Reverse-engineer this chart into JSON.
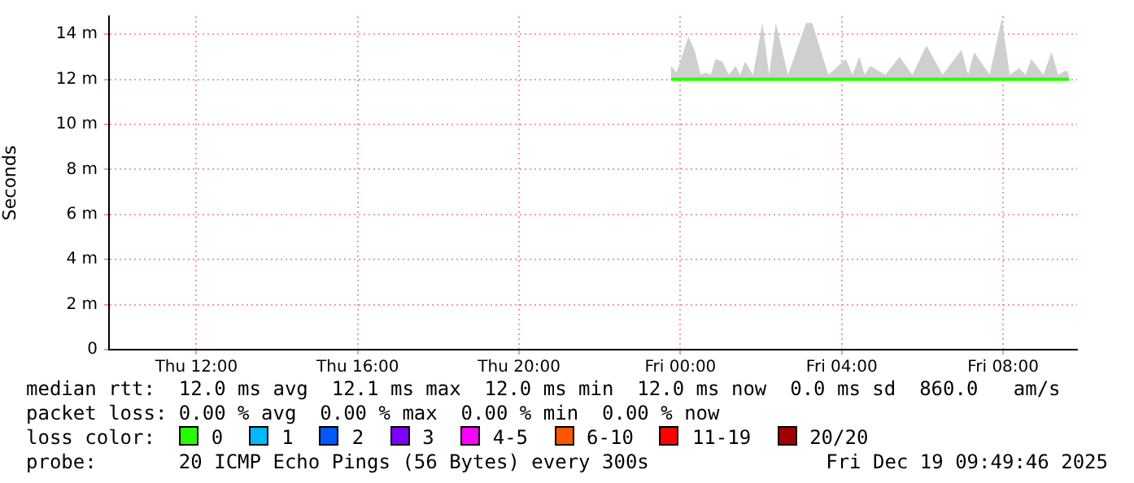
{
  "chart_data": {
    "type": "line",
    "ylabel": "Seconds",
    "legend_title": "loss color:",
    "legend": "bottom",
    "grid": true,
    "marker": "none",
    "line_style": "solid",
    "xlim": [
      "2025-12-18T09:50",
      "2025-12-19T09:50"
    ],
    "xticks": [
      {
        "value": "2025-12-18T12:00",
        "label": "Thu 12:00"
      },
      {
        "value": "2025-12-18T16:00",
        "label": "Thu 16:00"
      },
      {
        "value": "2025-12-18T20:00",
        "label": "Thu 20:00"
      },
      {
        "value": "2025-12-19T00:00",
        "label": "Fri 00:00"
      },
      {
        "value": "2025-12-19T04:00",
        "label": "Fri 04:00"
      },
      {
        "value": "2025-12-19T08:00",
        "label": "Fri 08:00"
      }
    ],
    "ylim": [
      0,
      14.8
    ],
    "yticks": [
      0,
      {
        "value": 2,
        "label": "2 m"
      },
      {
        "value": 4,
        "label": "4 m"
      },
      {
        "value": 6,
        "label": "6 m"
      },
      {
        "value": 8,
        "label": "8 m"
      },
      {
        "value": 10,
        "label": "10 m"
      },
      {
        "value": 12,
        "label": "12 m"
      },
      {
        "value": 14,
        "label": "14 m"
      }
    ],
    "series": [
      {
        "name": "0",
        "color": "#26ff00",
        "x": [
          "2025-12-18T23:46",
          "2025-12-18T23:54",
          "2025-12-19T00:02",
          "2025-12-19T00:12",
          "2025-12-19T00:22",
          "2025-12-19T00:30",
          "2025-12-19T00:38",
          "2025-12-19T00:45",
          "2025-12-19T00:52",
          "2025-12-19T01:02",
          "2025-12-19T01:12",
          "2025-12-19T01:22",
          "2025-12-19T01:29",
          "2025-12-19T01:36",
          "2025-12-19T01:48",
          "2025-12-19T02:02",
          "2025-12-19T02:12",
          "2025-12-19T02:22",
          "2025-12-19T02:40",
          "2025-12-19T03:07",
          "2025-12-19T03:16",
          "2025-12-19T03:40",
          "2025-12-19T04:06",
          "2025-12-19T04:16",
          "2025-12-19T04:26",
          "2025-12-19T04:34",
          "2025-12-19T04:42",
          "2025-12-19T05:05",
          "2025-12-19T05:26",
          "2025-12-19T05:45",
          "2025-12-19T06:06",
          "2025-12-19T06:30",
          "2025-12-19T06:58",
          "2025-12-19T07:08",
          "2025-12-19T07:17",
          "2025-12-19T07:40",
          "2025-12-19T07:58",
          "2025-12-19T08:10",
          "2025-12-19T08:24",
          "2025-12-19T08:33",
          "2025-12-19T08:42",
          "2025-12-19T09:00",
          "2025-12-19T09:12",
          "2025-12-19T09:22",
          "2025-12-19T09:34",
          "2025-12-19T09:38"
        ],
        "values": [
          12,
          12,
          12,
          12,
          12,
          12,
          12,
          12,
          12,
          12,
          12,
          12,
          12,
          12,
          12,
          12,
          12,
          12,
          12,
          12,
          12,
          12,
          12,
          12,
          12,
          12,
          12,
          12,
          12,
          12,
          12,
          12,
          12,
          12,
          12,
          12,
          12,
          12,
          12,
          12,
          12,
          12,
          12,
          12,
          12,
          12
        ],
        "lower": [
          12,
          12,
          12,
          12,
          12,
          12,
          12,
          12,
          12,
          12,
          12,
          12,
          12,
          12,
          12,
          12,
          12,
          12,
          12,
          12,
          12,
          12,
          12,
          12,
          12,
          12,
          12,
          12,
          12,
          12,
          12,
          12,
          12,
          12,
          12,
          12,
          12,
          12,
          12,
          12,
          12,
          12,
          12,
          12,
          12,
          12
        ],
        "upper": [
          12.6,
          12.3,
          13,
          13.9,
          13.2,
          12.2,
          12.3,
          12.2,
          12.9,
          12.8,
          12.2,
          12.6,
          12.2,
          12.8,
          12.2,
          14.5,
          12.2,
          14.5,
          12.2,
          14.5,
          14.5,
          12.2,
          12.9,
          12.2,
          13,
          12.2,
          12.6,
          12.2,
          13,
          12.2,
          13.5,
          12.2,
          13.3,
          12.2,
          13.2,
          12.2,
          14.7,
          12.2,
          12.5,
          12.2,
          12.9,
          12.2,
          13.2,
          12.2,
          12.4,
          12.2
        ]
      },
      {
        "name": "1",
        "color": "#00b8ff"
      },
      {
        "name": "2",
        "color": "#0059ff"
      },
      {
        "name": "3",
        "color": "#7e00ff"
      },
      {
        "name": "4-5",
        "color": "#ff00ff"
      },
      {
        "name": "6-10",
        "color": "#ff5500"
      },
      {
        "name": "11-19",
        "color": "#ff0000"
      },
      {
        "name": "20/20",
        "color": "#a10000"
      }
    ],
    "annotations": [
      "median rtt:  12.0 ms avg  12.1 ms max  12.0 ms min  12.0 ms now  0.0 ms sd  860.0   am/s",
      "packet loss: 0.00 % avg  0.00 % max  0.00 % min  0.00 % now",
      "probe:       20 ICMP Echo Pings (56 Bytes) every 300s",
      "Fri Dec 19 09:49:46 2025"
    ]
  }
}
